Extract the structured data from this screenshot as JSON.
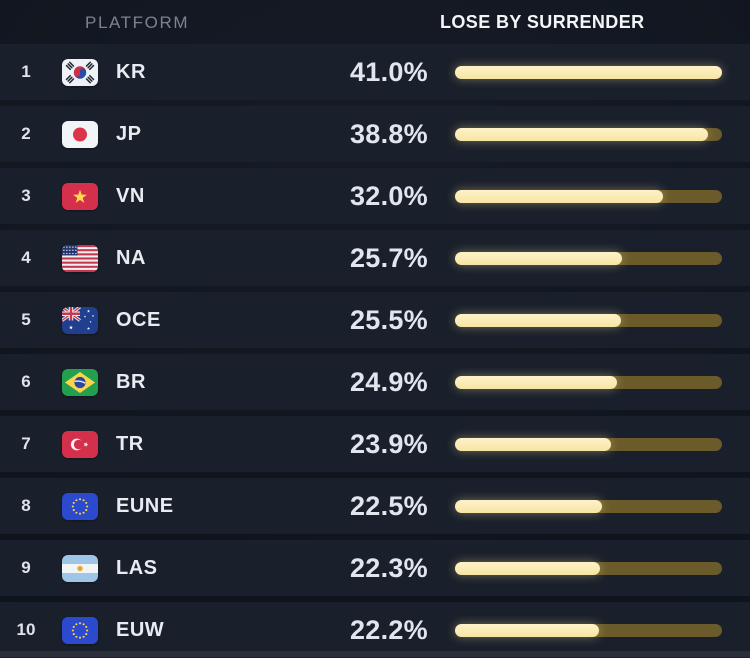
{
  "header": {
    "platform_label": "PLATFORM",
    "value_label": "LOSE BY SURRENDER"
  },
  "colors": {
    "background": "#10151e",
    "row_background": "#1a202b",
    "bar_fill": "#f7e5a4",
    "bar_track": "#6b5b2a",
    "header_muted": "#7b8292",
    "text_primary": "#e8ecf2"
  },
  "chart_data": {
    "type": "bar",
    "orientation": "horizontal",
    "title": "LOSE BY SURRENDER",
    "ylabel": "PLATFORM",
    "xlabel": "",
    "categories": [
      "KR",
      "JP",
      "VN",
      "NA",
      "OCE",
      "BR",
      "TR",
      "EUNE",
      "LAS",
      "EUW"
    ],
    "values": [
      41.0,
      38.8,
      32.0,
      25.7,
      25.5,
      24.9,
      23.9,
      22.5,
      22.3,
      22.2
    ],
    "ranks": [
      1,
      2,
      3,
      4,
      5,
      6,
      7,
      8,
      9,
      10
    ],
    "value_suffix": "%",
    "bar_full_scale": 41.0,
    "legend": "none",
    "grid": false
  },
  "rows": [
    {
      "rank": "1",
      "flag": "kr",
      "code": "KR",
      "value": 41.0,
      "value_label": "41.0%"
    },
    {
      "rank": "2",
      "flag": "jp",
      "code": "JP",
      "value": 38.8,
      "value_label": "38.8%"
    },
    {
      "rank": "3",
      "flag": "vn",
      "code": "VN",
      "value": 32.0,
      "value_label": "32.0%"
    },
    {
      "rank": "4",
      "flag": "us",
      "code": "NA",
      "value": 25.7,
      "value_label": "25.7%"
    },
    {
      "rank": "5",
      "flag": "au",
      "code": "OCE",
      "value": 25.5,
      "value_label": "25.5%"
    },
    {
      "rank": "6",
      "flag": "br",
      "code": "BR",
      "value": 24.9,
      "value_label": "24.9%"
    },
    {
      "rank": "7",
      "flag": "tr",
      "code": "TR",
      "value": 23.9,
      "value_label": "23.9%"
    },
    {
      "rank": "8",
      "flag": "eu",
      "code": "EUNE",
      "value": 22.5,
      "value_label": "22.5%"
    },
    {
      "rank": "9",
      "flag": "ar",
      "code": "LAS",
      "value": 22.3,
      "value_label": "22.3%"
    },
    {
      "rank": "10",
      "flag": "eu",
      "code": "EUW",
      "value": 22.2,
      "value_label": "22.2%"
    }
  ]
}
